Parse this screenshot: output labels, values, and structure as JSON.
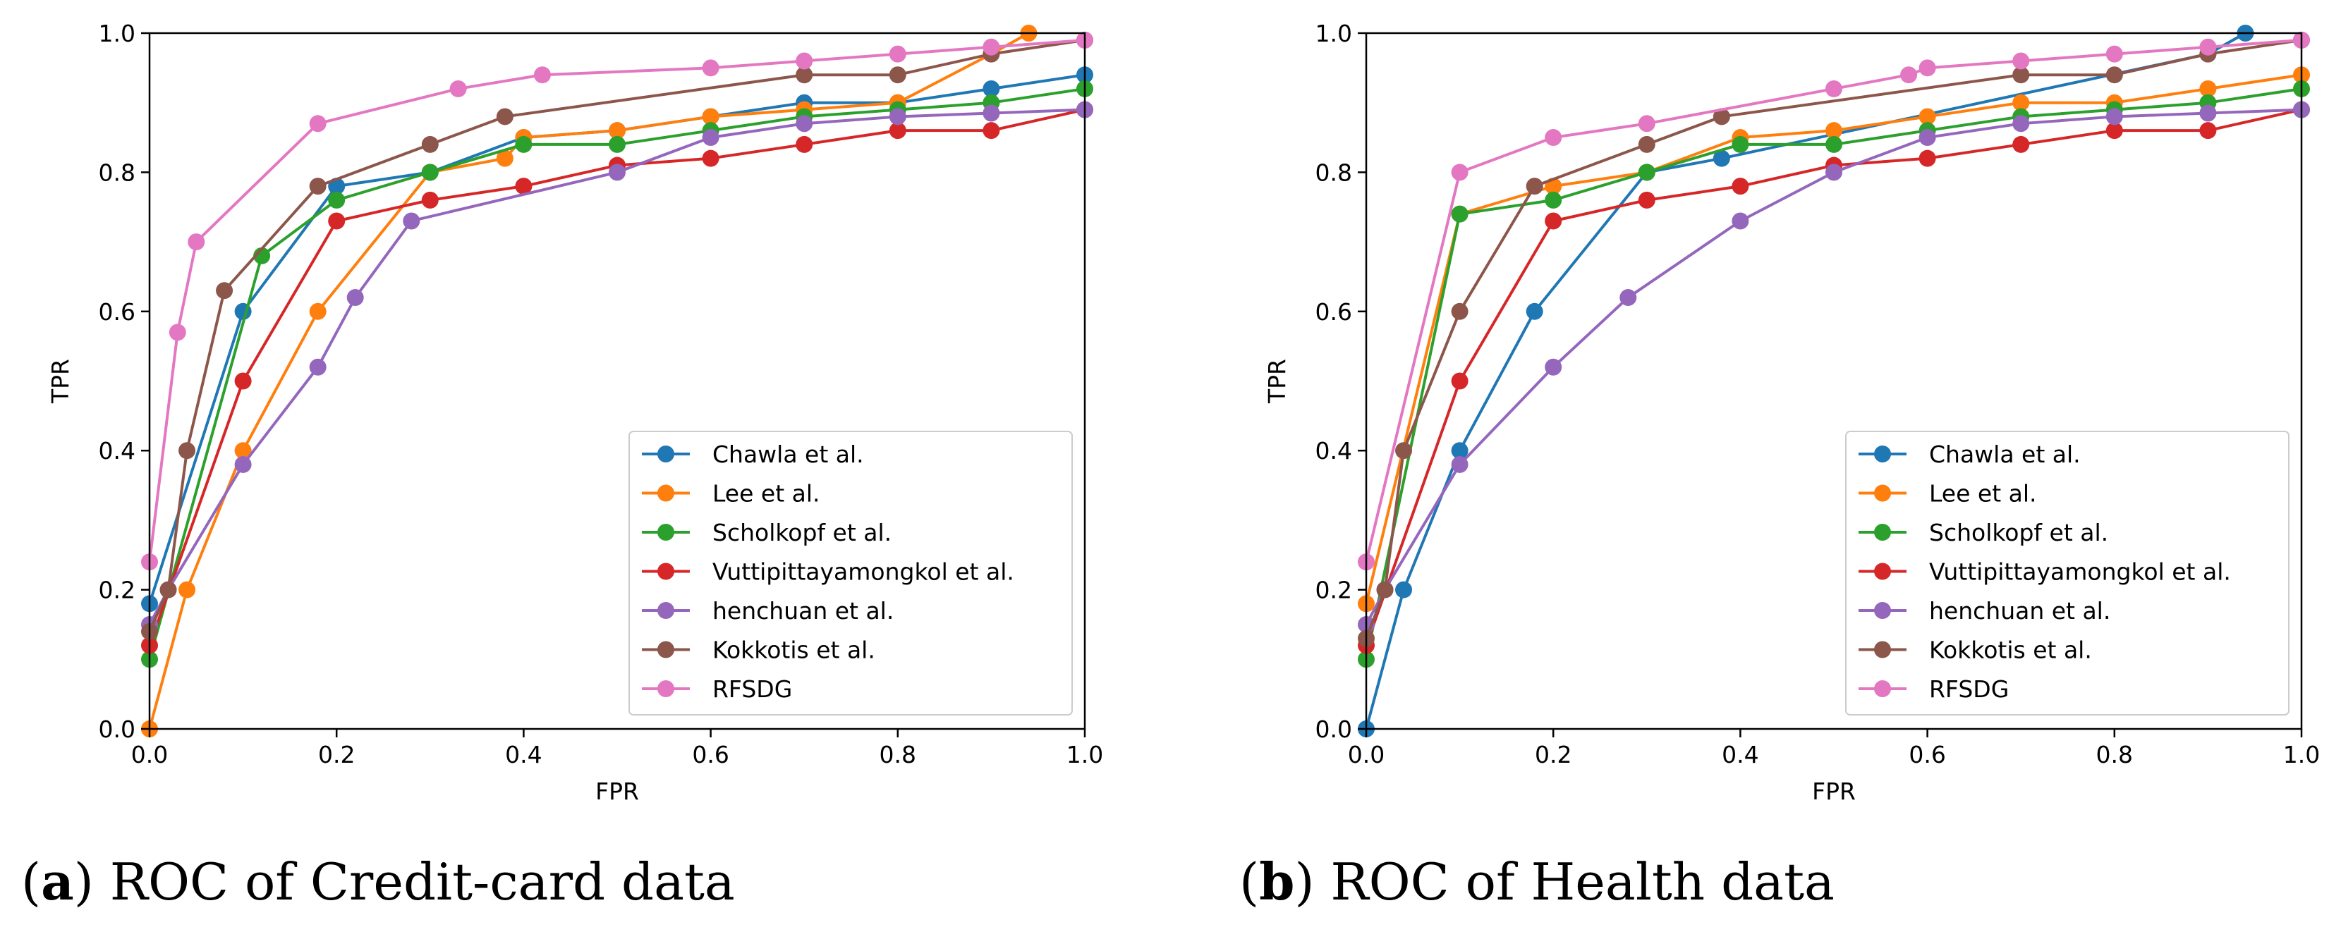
{
  "chart_data": [
    {
      "type": "line",
      "caption_letter": "a",
      "caption_text": "ROC of Credit-card data",
      "xlabel": "FPR",
      "ylabel": "TPR",
      "xlim": [
        0,
        1
      ],
      "ylim": [
        0,
        1
      ],
      "xticks": [
        "0.0",
        "0.2",
        "0.4",
        "0.6",
        "0.8",
        "1.0"
      ],
      "yticks": [
        "0.0",
        "0.2",
        "0.4",
        "0.6",
        "0.8",
        "1.0"
      ],
      "grid": false,
      "legend_position": "lower-right",
      "series": [
        {
          "name": "Chawla et al.",
          "color": "#1f77b4",
          "x": [
            0,
            0.1,
            0.2,
            0.3,
            0.4,
            0.5,
            0.6,
            0.7,
            0.8,
            0.9,
            1.0
          ],
          "y": [
            0.18,
            0.6,
            0.78,
            0.8,
            0.85,
            0.86,
            0.88,
            0.9,
            0.9,
            0.92,
            0.94
          ]
        },
        {
          "name": "Lee et al.",
          "color": "#ff7f0e",
          "x": [
            0,
            0.04,
            0.1,
            0.18,
            0.3,
            0.38,
            0.4,
            0.5,
            0.6,
            0.7,
            0.8,
            0.9,
            0.94
          ],
          "y": [
            0.0,
            0.2,
            0.4,
            0.6,
            0.8,
            0.82,
            0.85,
            0.86,
            0.88,
            0.89,
            0.9,
            0.97,
            1.0
          ]
        },
        {
          "name": "Scholkopf et al.",
          "color": "#2ca02c",
          "x": [
            0,
            0.12,
            0.2,
            0.3,
            0.4,
            0.5,
            0.6,
            0.7,
            0.8,
            0.9,
            1.0
          ],
          "y": [
            0.1,
            0.68,
            0.76,
            0.8,
            0.84,
            0.84,
            0.86,
            0.88,
            0.89,
            0.9,
            0.92
          ]
        },
        {
          "name": "Vuttipittayamongkol et al.",
          "color": "#d62728",
          "x": [
            0,
            0.1,
            0.2,
            0.3,
            0.4,
            0.5,
            0.6,
            0.7,
            0.8,
            0.9,
            1.0
          ],
          "y": [
            0.12,
            0.5,
            0.73,
            0.76,
            0.78,
            0.81,
            0.82,
            0.84,
            0.86,
            0.86,
            0.89
          ]
        },
        {
          "name": "henchuan et al.",
          "color": "#9467bd",
          "x": [
            0,
            0.02,
            0.1,
            0.18,
            0.22,
            0.28,
            0.5,
            0.6,
            0.7,
            0.8,
            0.9,
            1.0
          ],
          "y": [
            0.15,
            0.2,
            0.38,
            0.52,
            0.62,
            0.73,
            0.8,
            0.85,
            0.87,
            0.88,
            0.885,
            0.89
          ]
        },
        {
          "name": "Kokkotis et al.",
          "color": "#8c564b",
          "x": [
            0,
            0.02,
            0.04,
            0.08,
            0.18,
            0.3,
            0.38,
            0.7,
            0.8,
            0.9,
            1.0
          ],
          "y": [
            0.14,
            0.2,
            0.4,
            0.63,
            0.78,
            0.84,
            0.88,
            0.94,
            0.94,
            0.97,
            0.99
          ]
        },
        {
          "name": "RFSDG",
          "color": "#e377c2",
          "x": [
            0,
            0.03,
            0.05,
            0.18,
            0.33,
            0.42,
            0.6,
            0.7,
            0.8,
            0.9,
            1.0
          ],
          "y": [
            0.24,
            0.57,
            0.7,
            0.87,
            0.92,
            0.94,
            0.95,
            0.96,
            0.97,
            0.98,
            0.99
          ]
        }
      ]
    },
    {
      "type": "line",
      "caption_letter": "b",
      "caption_text": "ROC of Health data",
      "xlabel": "FPR",
      "ylabel": "TPR",
      "xlim": [
        0,
        1
      ],
      "ylim": [
        0,
        1
      ],
      "xticks": [
        "0.0",
        "0.2",
        "0.4",
        "0.6",
        "0.8",
        "1.0"
      ],
      "yticks": [
        "0.0",
        "0.2",
        "0.4",
        "0.6",
        "0.8",
        "1.0"
      ],
      "grid": false,
      "legend_position": "lower-right",
      "series": [
        {
          "name": "Chawla et al.",
          "color": "#1f77b4",
          "x": [
            0,
            0.04,
            0.1,
            0.18,
            0.3,
            0.38,
            0.9,
            0.94
          ],
          "y": [
            0.0,
            0.2,
            0.4,
            0.6,
            0.8,
            0.82,
            0.97,
            1.0
          ]
        },
        {
          "name": "Lee et al.",
          "color": "#ff7f0e",
          "x": [
            0,
            0.1,
            0.2,
            0.3,
            0.4,
            0.5,
            0.6,
            0.7,
            0.8,
            0.9,
            1.0
          ],
          "y": [
            0.18,
            0.74,
            0.78,
            0.8,
            0.85,
            0.86,
            0.88,
            0.9,
            0.9,
            0.92,
            0.94
          ]
        },
        {
          "name": "Scholkopf et al.",
          "color": "#2ca02c",
          "x": [
            0,
            0.1,
            0.2,
            0.3,
            0.4,
            0.5,
            0.6,
            0.7,
            0.8,
            0.9,
            1.0
          ],
          "y": [
            0.1,
            0.74,
            0.76,
            0.8,
            0.84,
            0.84,
            0.86,
            0.88,
            0.89,
            0.9,
            0.92
          ]
        },
        {
          "name": "Vuttipittayamongkol et al.",
          "color": "#d62728",
          "x": [
            0,
            0.1,
            0.2,
            0.3,
            0.4,
            0.5,
            0.6,
            0.7,
            0.8,
            0.9,
            1.0
          ],
          "y": [
            0.12,
            0.5,
            0.73,
            0.76,
            0.78,
            0.81,
            0.82,
            0.84,
            0.86,
            0.86,
            0.89
          ]
        },
        {
          "name": "henchuan et al.",
          "color": "#9467bd",
          "x": [
            0,
            0.02,
            0.1,
            0.2,
            0.28,
            0.4,
            0.5,
            0.6,
            0.7,
            0.8,
            0.9,
            1.0
          ],
          "y": [
            0.15,
            0.2,
            0.38,
            0.52,
            0.62,
            0.73,
            0.8,
            0.85,
            0.87,
            0.88,
            0.885,
            0.89
          ]
        },
        {
          "name": "Kokkotis et al.",
          "color": "#8c564b",
          "x": [
            0,
            0.02,
            0.04,
            0.1,
            0.18,
            0.3,
            0.38,
            0.7,
            0.8,
            0.9,
            1.0
          ],
          "y": [
            0.13,
            0.2,
            0.4,
            0.6,
            0.78,
            0.84,
            0.88,
            0.94,
            0.94,
            0.97,
            0.99
          ]
        },
        {
          "name": "RFSDG",
          "color": "#e377c2",
          "x": [
            0,
            0.1,
            0.2,
            0.3,
            0.5,
            0.58,
            0.6,
            0.7,
            0.8,
            0.9,
            1.0
          ],
          "y": [
            0.24,
            0.8,
            0.85,
            0.87,
            0.92,
            0.94,
            0.95,
            0.96,
            0.97,
            0.98,
            0.99
          ]
        }
      ]
    }
  ]
}
